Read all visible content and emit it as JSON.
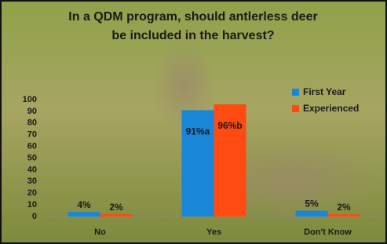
{
  "chart_data": {
    "type": "bar",
    "title": [
      "In a QDM program, should antlerless deer",
      "be included in the harvest?"
    ],
    "categories": [
      "No",
      "Yes",
      "Don't Know"
    ],
    "series": [
      {
        "name": "First Year",
        "color": "#1a86d8",
        "values": [
          4,
          91,
          5
        ],
        "value_labels": [
          "4%",
          "91%a",
          "5%"
        ]
      },
      {
        "name": "Experienced",
        "color": "#ff4a12",
        "values": [
          2,
          96,
          2
        ],
        "value_labels": [
          "2%",
          "96%b",
          "2%"
        ]
      }
    ],
    "ylim": [
      0,
      100
    ],
    "yticks": [
      0,
      10,
      20,
      30,
      40,
      50,
      60,
      70,
      80,
      90,
      100
    ],
    "grid": false,
    "legend": "top-right"
  }
}
